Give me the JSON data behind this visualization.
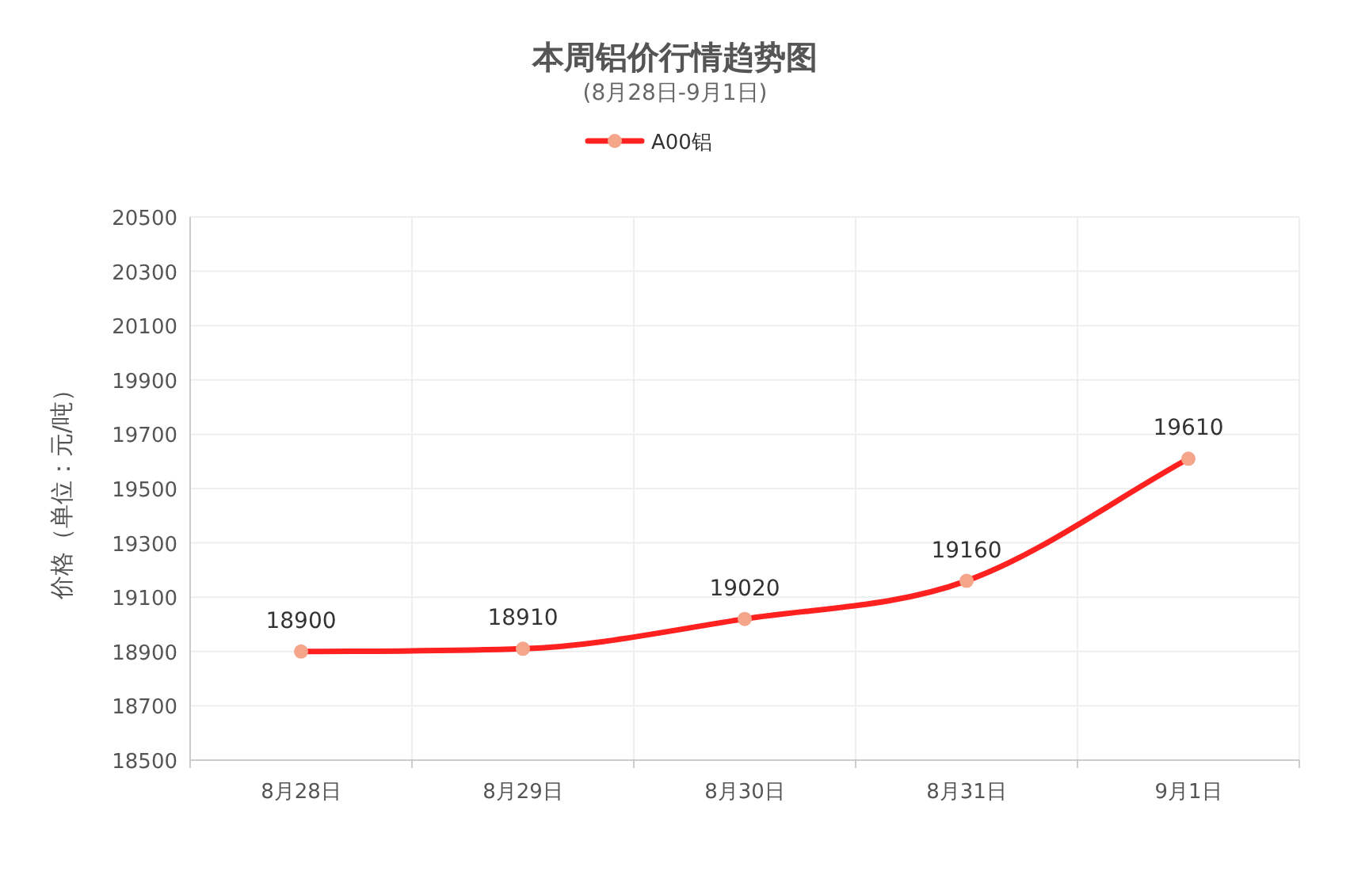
{
  "chart_data": {
    "type": "line",
    "title": "本周铝价行情趋势图",
    "subtitle": "(8月28日-9月1日)",
    "ylabel": "价格（单位：元/吨）",
    "categories": [
      "8月28日",
      "8月29日",
      "8月30日",
      "8月31日",
      "9月1日"
    ],
    "series": [
      {
        "name": "A00铝",
        "color": "#ff2020",
        "values": [
          18900,
          18910,
          19020,
          19160,
          19610
        ]
      }
    ],
    "ylim": [
      18500,
      20500
    ],
    "yticks": [
      18500,
      18700,
      18900,
      19100,
      19300,
      19500,
      19700,
      19900,
      20100,
      20300,
      20500
    ],
    "grid": true,
    "legend": "top",
    "marker": "circle",
    "data_labels": true
  }
}
